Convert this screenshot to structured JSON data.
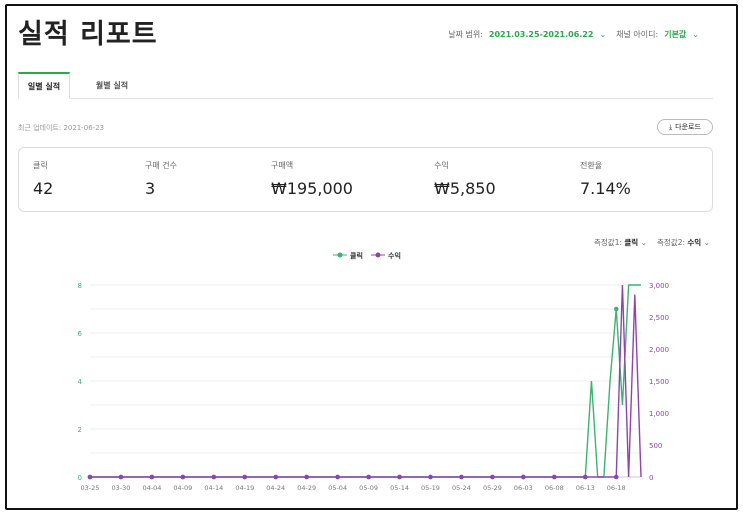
{
  "header": {
    "title": "실적 리포트",
    "date_range_label": "날짜 범위:",
    "date_range_value": "2021.03.25-2021.06.22",
    "channel_label": "채널 아이디:",
    "channel_value": "기본값"
  },
  "tabs": [
    {
      "label": "일별 실적",
      "active": true
    },
    {
      "label": "월별 실적",
      "active": false
    }
  ],
  "last_update": "최근 업데이트: 2021-06-23",
  "download_label": "다운로드",
  "stats": [
    {
      "label": "클릭",
      "value": "42"
    },
    {
      "label": "구매 건수",
      "value": "3"
    },
    {
      "label": "구매액",
      "value": "₩195,000"
    },
    {
      "label": "수익",
      "value": "₩5,850"
    },
    {
      "label": "전환율",
      "value": "7.14%"
    }
  ],
  "chart_controls": {
    "metric1_label": "측정값1:",
    "metric1_value": "클릭",
    "metric2_label": "측정값2:",
    "metric2_value": "수익"
  },
  "chart_data": {
    "type": "line",
    "colors": {
      "클릭": "#3cb371",
      "수익": "#8e44ad"
    },
    "legend_placement": "top-center",
    "grid": true,
    "x": [
      "03-25",
      "03-26",
      "03-27",
      "03-28",
      "03-29",
      "03-30",
      "03-31",
      "04-01",
      "04-02",
      "04-03",
      "04-04",
      "04-05",
      "04-06",
      "04-07",
      "04-08",
      "04-09",
      "04-10",
      "04-11",
      "04-12",
      "04-13",
      "04-14",
      "04-15",
      "04-16",
      "04-17",
      "04-18",
      "04-19",
      "04-20",
      "04-21",
      "04-22",
      "04-23",
      "04-24",
      "04-25",
      "04-26",
      "04-27",
      "04-28",
      "04-29",
      "04-30",
      "05-01",
      "05-02",
      "05-03",
      "05-04",
      "05-05",
      "05-06",
      "05-07",
      "05-08",
      "05-09",
      "05-10",
      "05-11",
      "05-12",
      "05-13",
      "05-14",
      "05-15",
      "05-16",
      "05-17",
      "05-18",
      "05-19",
      "05-20",
      "05-21",
      "05-22",
      "05-23",
      "05-24",
      "05-25",
      "05-26",
      "05-27",
      "05-28",
      "05-29",
      "05-30",
      "05-31",
      "06-01",
      "06-02",
      "06-03",
      "06-04",
      "06-05",
      "06-06",
      "06-07",
      "06-08",
      "06-09",
      "06-10",
      "06-11",
      "06-12",
      "06-13",
      "06-14",
      "06-15",
      "06-16",
      "06-17",
      "06-18",
      "06-19",
      "06-20",
      "06-21",
      "06-22"
    ],
    "x_ticks": [
      "03-25",
      "03-30",
      "04-04",
      "04-09",
      "04-14",
      "04-19",
      "04-24",
      "04-29",
      "05-04",
      "05-09",
      "05-14",
      "05-19",
      "05-24",
      "05-29",
      "06-03",
      "06-08",
      "06-13",
      "06-18"
    ],
    "y_left": {
      "ticks": [
        "0",
        "2",
        "4",
        "6",
        "8"
      ],
      "range": [
        0,
        8
      ]
    },
    "y_right": {
      "ticks": [
        "0",
        "500",
        "1,000",
        "1,500",
        "2,000",
        "2,500",
        "3,000"
      ],
      "range": [
        0,
        3000
      ]
    },
    "series": [
      {
        "name": "클릭",
        "axis": "left",
        "values": [
          0,
          0,
          0,
          0,
          0,
          0,
          0,
          0,
          0,
          0,
          0,
          0,
          0,
          0,
          0,
          0,
          0,
          0,
          0,
          0,
          0,
          0,
          0,
          0,
          0,
          0,
          0,
          0,
          0,
          0,
          0,
          0,
          0,
          0,
          0,
          0,
          0,
          0,
          0,
          0,
          0,
          0,
          0,
          0,
          0,
          0,
          0,
          0,
          0,
          0,
          0,
          0,
          0,
          0,
          0,
          0,
          0,
          0,
          0,
          0,
          0,
          0,
          0,
          0,
          0,
          0,
          0,
          0,
          0,
          0,
          0,
          0,
          0,
          0,
          0,
          0,
          0,
          0,
          0,
          0,
          0,
          4,
          0,
          0,
          4,
          7,
          3,
          8,
          8,
          8
        ]
      },
      {
        "name": "수익",
        "axis": "right",
        "values": [
          0,
          0,
          0,
          0,
          0,
          0,
          0,
          0,
          0,
          0,
          0,
          0,
          0,
          0,
          0,
          0,
          0,
          0,
          0,
          0,
          0,
          0,
          0,
          0,
          0,
          0,
          0,
          0,
          0,
          0,
          0,
          0,
          0,
          0,
          0,
          0,
          0,
          0,
          0,
          0,
          0,
          0,
          0,
          0,
          0,
          0,
          0,
          0,
          0,
          0,
          0,
          0,
          0,
          0,
          0,
          0,
          0,
          0,
          0,
          0,
          0,
          0,
          0,
          0,
          0,
          0,
          0,
          0,
          0,
          0,
          0,
          0,
          0,
          0,
          0,
          0,
          0,
          0,
          0,
          0,
          0,
          0,
          0,
          0,
          0,
          0,
          3000,
          0,
          2850,
          0
        ]
      }
    ]
  }
}
